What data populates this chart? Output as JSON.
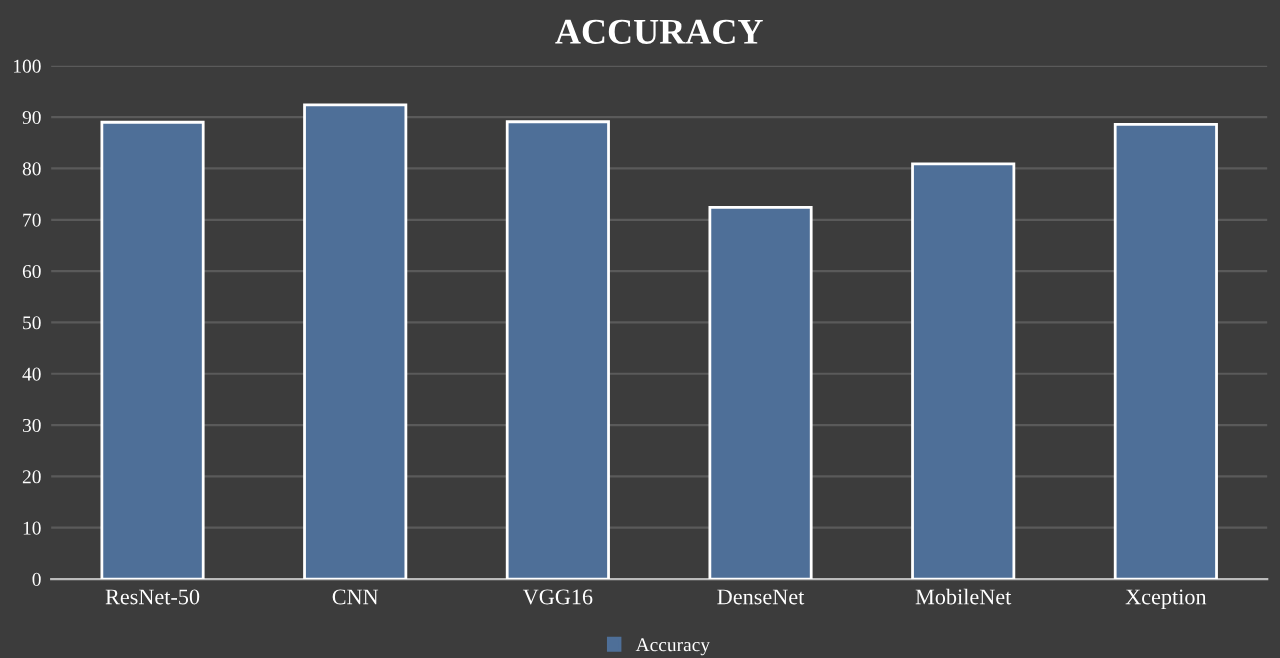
{
  "chart_data": {
    "type": "bar",
    "title": "ACCURACY",
    "categories": [
      "ResNet-50",
      "CNN",
      "VGG16",
      "DenseNet",
      "MobileNet",
      "Xception"
    ],
    "series": [
      {
        "name": "Accuracy",
        "color": "#4e6f98",
        "values": [
          89,
          92.4,
          89.1,
          72.4,
          80.9,
          88.6
        ]
      }
    ],
    "ylim": [
      0,
      100
    ],
    "yticks": [
      0,
      10,
      20,
      30,
      40,
      50,
      60,
      70,
      80,
      90,
      100
    ],
    "grid": "y",
    "legend": "bottom"
  }
}
